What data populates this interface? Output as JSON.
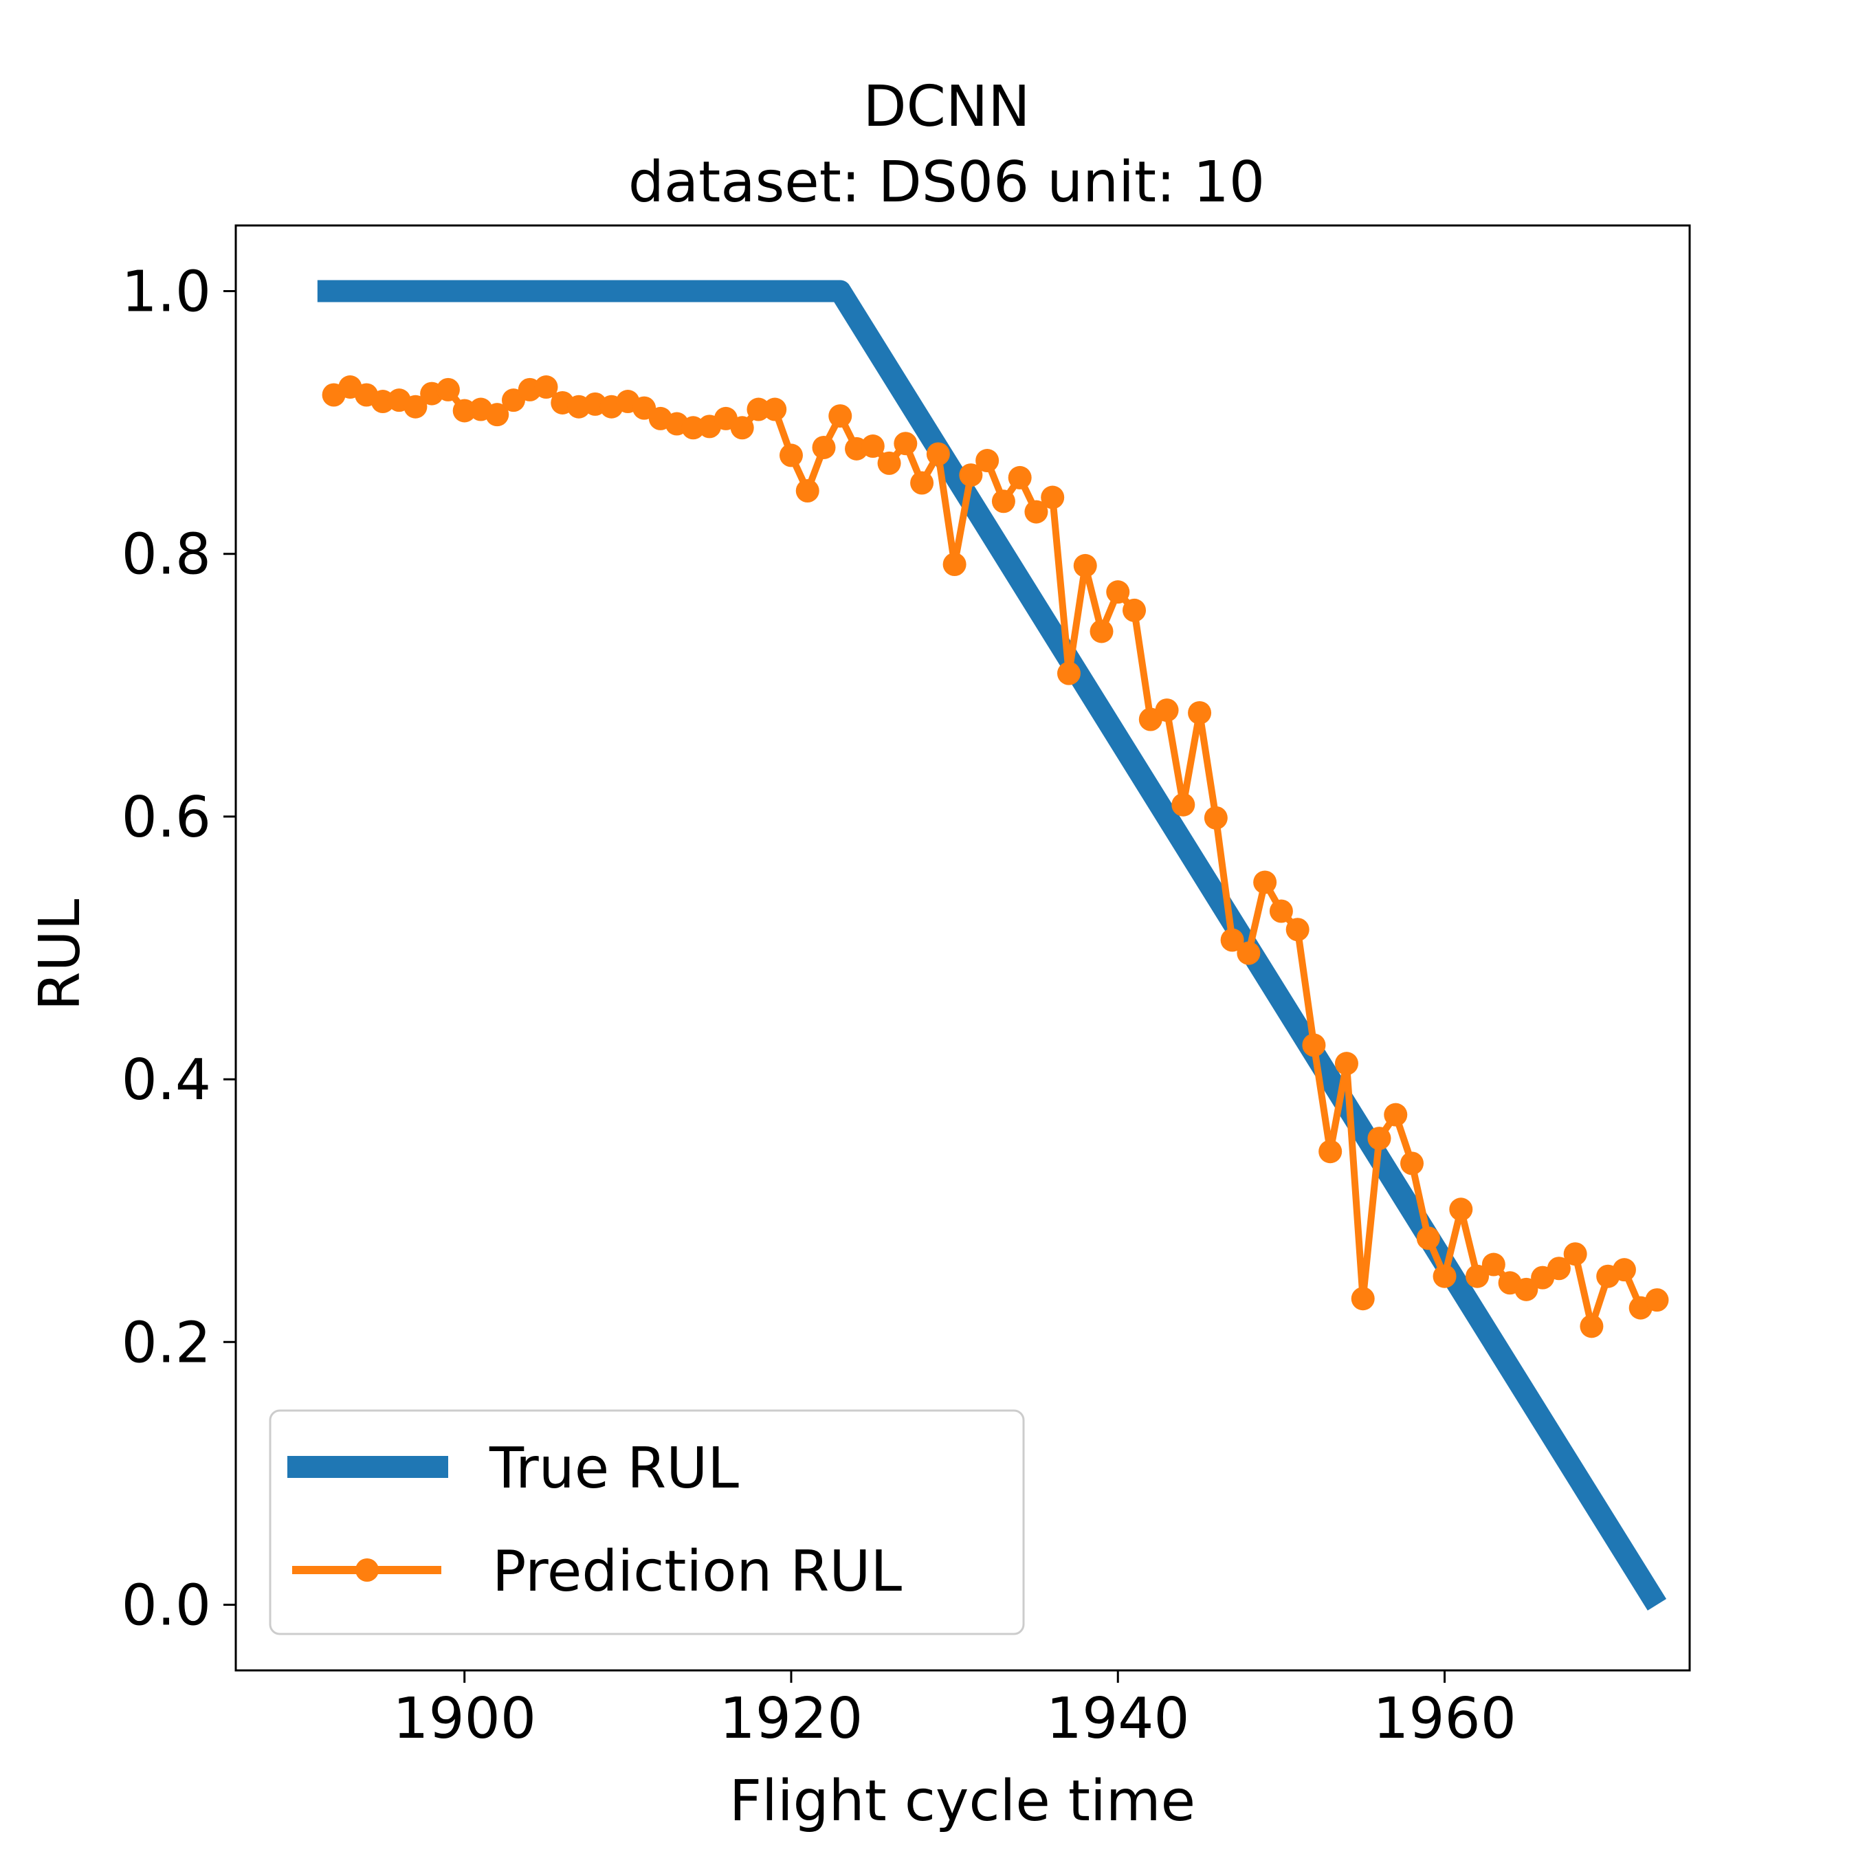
{
  "chart_data": {
    "type": "line",
    "title": "DCNN",
    "subtitle": "dataset: DS06 unit: 10",
    "xlabel": "Flight cycle time",
    "ylabel": "RUL",
    "xlim": [
      1886,
      1975
    ],
    "ylim": [
      -0.05,
      1.05
    ],
    "xticks": [
      1900,
      1920,
      1940,
      1960
    ],
    "yticks": [
      0.0,
      0.2,
      0.4,
      0.6,
      0.8,
      1.0
    ],
    "xtick_labels": [
      "1900",
      "1920",
      "1940",
      "1960"
    ],
    "ytick_labels": [
      "0.0",
      "0.2",
      "0.4",
      "0.6",
      "0.8",
      "1.0"
    ],
    "grid": false,
    "legend_position": "lower-left",
    "series": [
      {
        "name": "True RUL",
        "color": "#1f77b4",
        "marker": "none",
        "x": [
          1891,
          1923,
          1973
        ],
        "y": [
          1.0,
          1.0,
          0.0
        ]
      },
      {
        "name": "Prediction RUL",
        "color": "#ff7f0e",
        "marker": "circle",
        "x": [
          1892,
          1893,
          1894,
          1895,
          1896,
          1897,
          1898,
          1899,
          1900,
          1901,
          1902,
          1903,
          1904,
          1905,
          1906,
          1907,
          1908,
          1909,
          1910,
          1911,
          1912,
          1913,
          1914,
          1915,
          1916,
          1917,
          1918,
          1919,
          1920,
          1921,
          1922,
          1923,
          1924,
          1925,
          1926,
          1927,
          1928,
          1929,
          1930,
          1931,
          1932,
          1933,
          1934,
          1935,
          1936,
          1937,
          1938,
          1939,
          1940,
          1941,
          1942,
          1943,
          1944,
          1945,
          1946,
          1947,
          1948,
          1949,
          1950,
          1951,
          1952,
          1953,
          1954,
          1955,
          1956,
          1957,
          1958,
          1959,
          1960,
          1961,
          1962,
          1963,
          1964,
          1965,
          1966,
          1967,
          1968,
          1969,
          1970,
          1971,
          1972,
          1973
        ],
        "y": [
          0.921,
          0.927,
          0.921,
          0.916,
          0.917,
          0.912,
          0.922,
          0.925,
          0.909,
          0.91,
          0.906,
          0.917,
          0.925,
          0.927,
          0.915,
          0.912,
          0.914,
          0.912,
          0.916,
          0.911,
          0.903,
          0.899,
          0.896,
          0.897,
          0.903,
          0.896,
          0.91,
          0.91,
          0.875,
          0.848,
          0.881,
          0.905,
          0.88,
          0.882,
          0.869,
          0.884,
          0.854,
          0.876,
          0.792,
          0.86,
          0.871,
          0.84,
          0.858,
          0.832,
          0.843,
          0.709,
          0.791,
          0.741,
          0.771,
          0.757,
          0.674,
          0.681,
          0.609,
          0.679,
          0.599,
          0.506,
          0.496,
          0.55,
          0.528,
          0.514,
          0.426,
          0.345,
          0.412,
          0.233,
          0.355,
          0.373,
          0.336,
          0.279,
          0.25,
          0.301,
          0.25,
          0.259,
          0.245,
          0.24,
          0.249,
          0.256,
          0.267,
          0.212,
          0.25,
          0.255,
          0.226,
          0.232
        ]
      }
    ]
  }
}
